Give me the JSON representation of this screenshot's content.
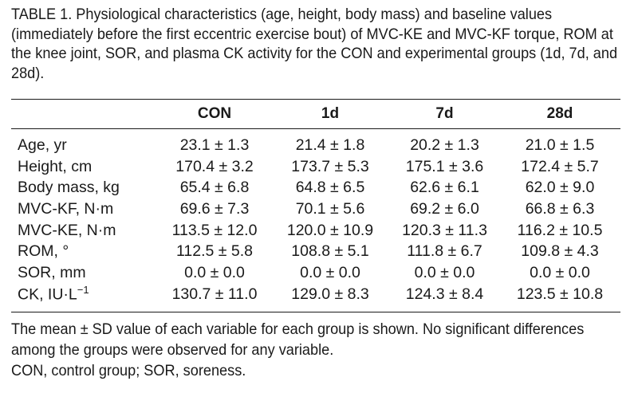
{
  "caption": "TABLE 1. Physiological characteristics (age, height, body mass) and baseline values (immediately before the first eccentric exercise bout) of MVC-KE and MVC-KF torque, ROM at the knee joint, SOR, and plasma CK activity for the CON and experimental groups (1d, 7d, and 28d).",
  "table": {
    "headers": [
      "",
      "CON",
      "1d",
      "7d",
      "28d"
    ],
    "rows": [
      {
        "label": "Age, yr",
        "values": [
          "23.1 ± 1.3",
          "21.4 ± 1.8",
          "20.2 ± 1.3",
          "21.0 ± 1.5"
        ]
      },
      {
        "label": "Height, cm",
        "values": [
          "170.4 ± 3.2",
          "173.7 ± 5.3",
          "175.1 ± 3.6",
          "172.4 ± 5.7"
        ]
      },
      {
        "label": "Body mass, kg",
        "values": [
          "65.4 ± 6.8",
          "64.8 ± 6.5",
          "62.6 ± 6.1",
          "62.0 ± 9.0"
        ]
      },
      {
        "label": "MVC-KF, N·m",
        "values": [
          "69.6 ± 7.3",
          "70.1 ± 5.6",
          "69.2 ± 6.0",
          "66.8 ± 6.3"
        ]
      },
      {
        "label": "MVC-KE, N·m",
        "values": [
          "113.5 ± 12.0",
          "120.0 ± 10.9",
          "120.3 ± 11.3",
          "116.2 ± 10.5"
        ]
      },
      {
        "label": "ROM, °",
        "values": [
          "112.5 ± 5.8",
          "108.8 ± 5.1",
          "111.8 ± 6.7",
          "109.8 ± 4.3"
        ]
      },
      {
        "label": "SOR, mm",
        "values": [
          "0.0 ± 0.0",
          "0.0 ± 0.0",
          "0.0 ± 0.0",
          "0.0 ± 0.0"
        ]
      },
      {
        "label": "CK, IU·L−1",
        "values": [
          "130.7 ± 11.0",
          "129.0 ± 8.3",
          "124.3 ± 8.4",
          "123.5 ± 10.8"
        ]
      }
    ]
  },
  "footnotes": [
    "The mean ± SD value of each variable for each group is shown. No significant differences among the groups were observed for any variable.",
    "CON, control group; SOR, soreness."
  ]
}
